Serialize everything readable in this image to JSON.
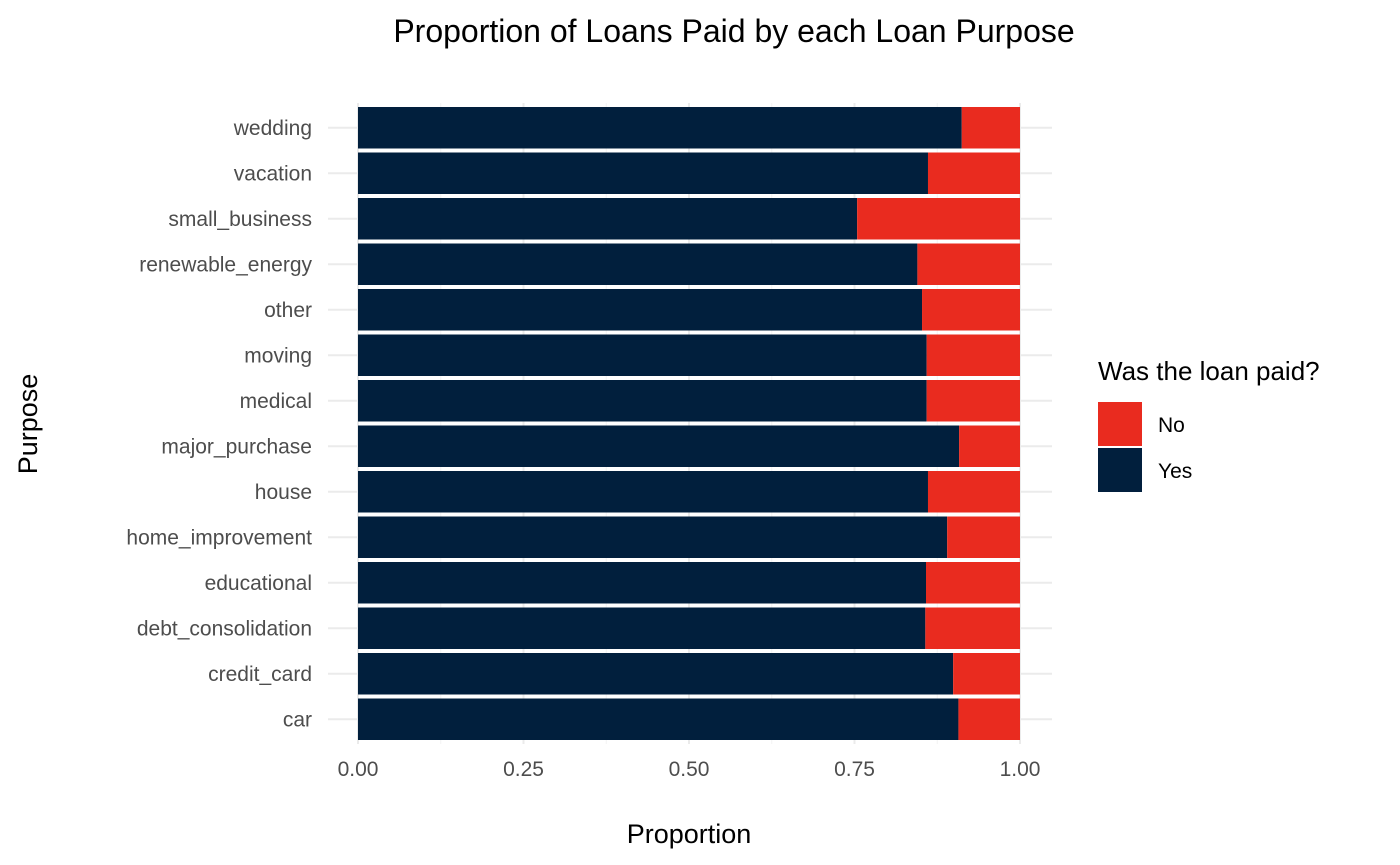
{
  "chart_data": {
    "type": "bar",
    "orientation": "horizontal",
    "stacked": true,
    "title": "Proportion of Loans Paid by each Loan Purpose",
    "xlabel": "Proportion",
    "ylabel": "Purpose",
    "xlim": [
      0,
      1
    ],
    "xticks": [
      "0.00",
      "0.25",
      "0.50",
      "0.75",
      "1.00"
    ],
    "xtick_values": [
      0,
      0.25,
      0.5,
      0.75,
      1.0
    ],
    "grid": true,
    "legend_title": "Was the loan paid?",
    "legend_position": "right",
    "categories": [
      "car",
      "credit_card",
      "debt_consolidation",
      "educational",
      "home_improvement",
      "house",
      "major_purchase",
      "medical",
      "moving",
      "other",
      "renewable_energy",
      "small_business",
      "vacation",
      "wedding"
    ],
    "series": [
      {
        "name": "Yes",
        "color": "#011f3d",
        "values": [
          0.907,
          0.899,
          0.857,
          0.858,
          0.89,
          0.861,
          0.908,
          0.859,
          0.859,
          0.852,
          0.845,
          0.754,
          0.861,
          0.912
        ]
      },
      {
        "name": "No",
        "color": "#e92b1f",
        "values": [
          0.093,
          0.101,
          0.143,
          0.142,
          0.11,
          0.139,
          0.092,
          0.141,
          0.141,
          0.148,
          0.155,
          0.246,
          0.139,
          0.088
        ]
      }
    ],
    "legend_order": [
      "No",
      "Yes"
    ]
  }
}
